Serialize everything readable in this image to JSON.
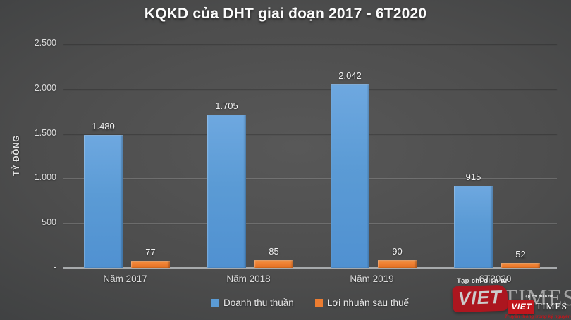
{
  "chart_data": {
    "type": "bar",
    "title": "KQKD của DHT giai đoạn 2017 - 6T2020",
    "categories": [
      "Năm 2017",
      "Năm 2018",
      "Năm 2019",
      "6T2020"
    ],
    "series": [
      {
        "name": "Doanh thu thuần",
        "color": "#5B9BD5",
        "values": [
          1480,
          1705,
          2042,
          915
        ],
        "labels": [
          "1.480",
          "1.705",
          "2.042",
          "915"
        ]
      },
      {
        "name": "Lợi nhuận sau thuế",
        "color": "#ED7D31",
        "values": [
          77,
          85,
          90,
          52
        ],
        "labels": [
          "77",
          "85",
          "90",
          "52"
        ]
      }
    ],
    "xlabel": "",
    "ylabel": "TỶ ĐỒNG",
    "ylim": [
      0,
      2500
    ],
    "ytick_values": [
      2500,
      2000,
      1500,
      1000,
      500,
      0
    ],
    "ytick_labels": [
      "2.500",
      "2.000",
      "1.500",
      "1.000",
      "500",
      "-"
    ],
    "grid": true,
    "legend_position": "bottom"
  },
  "watermark": {
    "masthead": "Tạp chí điện tử",
    "brand_first": "VIET",
    "brand_second": "TIMES",
    "tagline": "Truyền thông trong kỷ nguyên số",
    "brand_color": "#C0161D"
  }
}
